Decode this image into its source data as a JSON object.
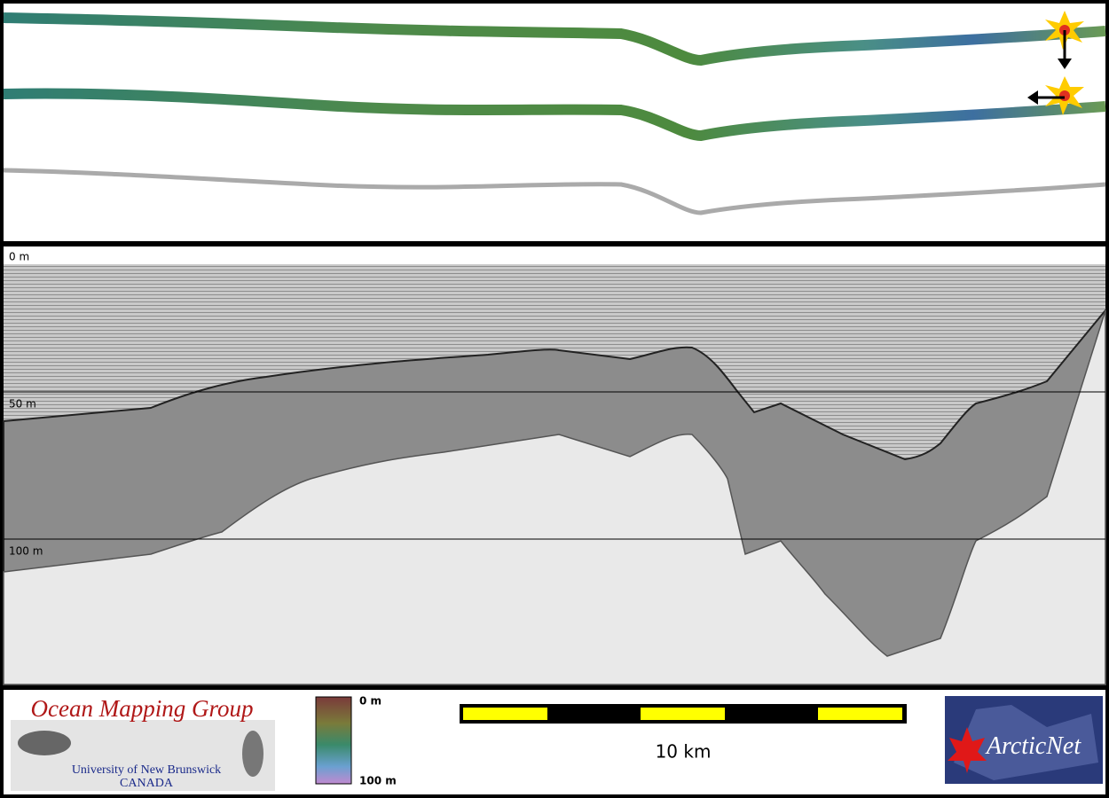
{
  "profile": {
    "depth_labels": [
      "0 m",
      "50 m",
      "100 m"
    ]
  },
  "footer": {
    "logo_left": {
      "title": "Ocean Mapping Group",
      "line1": "University of New Brunswick",
      "line2": "CANADA"
    },
    "colorbar": {
      "top": "0 m",
      "bottom": "100 m"
    },
    "scale_bar": {
      "label": "10 km"
    },
    "logo_right": {
      "title": "ArcticNet"
    }
  }
}
